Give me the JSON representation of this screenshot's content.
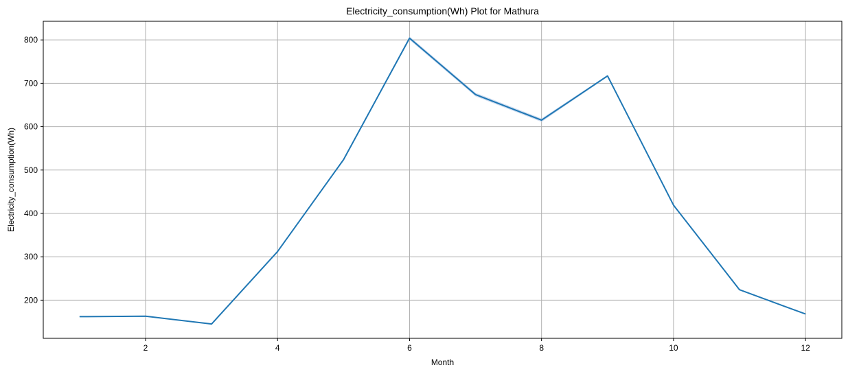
{
  "chart_data": {
    "type": "line",
    "title": "Electricity_consumption(Wh) Plot for Mathura",
    "xlabel": "Month",
    "ylabel": "Electricity_consumption(Wh)",
    "xlim": [
      0.45,
      12.55
    ],
    "ylim": [
      112,
      843
    ],
    "xticks": [
      2,
      4,
      6,
      8,
      10,
      12
    ],
    "yticks": [
      200,
      300,
      400,
      500,
      600,
      700,
      800
    ],
    "grid": true,
    "legend": "none",
    "colors": {
      "line": "#1f77b4",
      "band": "#aec7e8",
      "grid": "#b0b0b0"
    },
    "x": [
      1,
      2,
      3,
      4,
      5,
      6,
      7,
      8,
      9,
      10,
      11,
      12
    ],
    "series": [
      {
        "values": [
          162,
          163,
          145,
          312,
          524,
          804,
          674,
          615,
          717,
          419,
          224,
          168
        ],
        "ci_low": [
          161,
          162,
          144,
          311,
          522,
          800,
          670,
          611,
          715,
          418,
          223,
          167
        ],
        "ci_high": [
          163,
          164,
          146,
          313,
          526,
          808,
          678,
          619,
          719,
          420,
          225,
          169
        ]
      }
    ]
  }
}
